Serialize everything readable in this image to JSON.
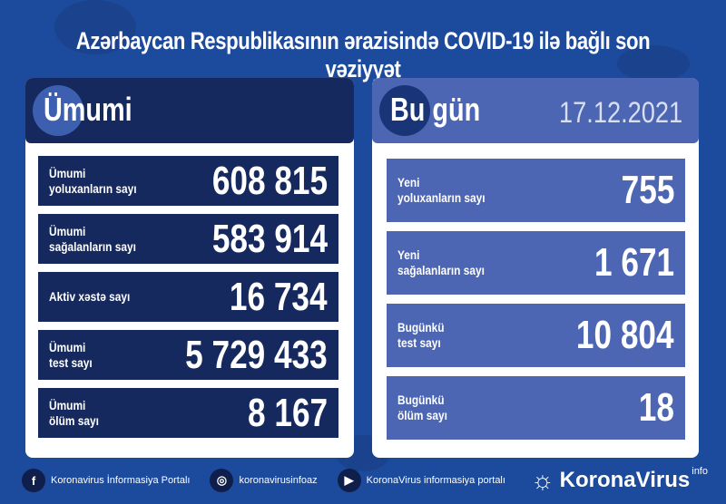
{
  "title": "Azərbaycan Respublikasının ərazisində COVID-19 ilə bağlı son vəziyyət",
  "total": {
    "heading": "Ümumi",
    "rows": [
      {
        "label1": "Ümumi",
        "label2": "yoluxanların sayı",
        "value": "608 815"
      },
      {
        "label1": "Ümumi",
        "label2": "sağalanların sayı",
        "value": "583 914"
      },
      {
        "label1": "Aktiv xəstə sayı",
        "label2": "",
        "value": "16 734"
      },
      {
        "label1": "Ümumi",
        "label2": "test sayı",
        "value": "5 729 433"
      },
      {
        "label1": "Ümumi",
        "label2": "ölüm sayı",
        "value": "8 167"
      }
    ]
  },
  "today": {
    "heading": "Bu gün",
    "date": "17.12.2021",
    "rows": [
      {
        "label1": "Yeni",
        "label2": "yoluxanların sayı",
        "value": "755"
      },
      {
        "label1": "Yeni",
        "label2": "sağalanların sayı",
        "value": "1 671"
      },
      {
        "label1": "Bugünkü",
        "label2": "test sayı",
        "value": "10 804"
      },
      {
        "label1": "Bugünkü",
        "label2": "ölüm sayı",
        "value": "18"
      }
    ]
  },
  "footer": {
    "facebook": "Koronavirus İnformasiya Portalı",
    "instagram": "koronavirusinfoaz",
    "youtube": "KoronaVirus informasiya portalı",
    "brand": "KoronaVirus",
    "brand_sup": "info"
  },
  "colors": {
    "background": "#1c4a9c",
    "navy": "#16295f",
    "accent": "#4c66b4"
  }
}
